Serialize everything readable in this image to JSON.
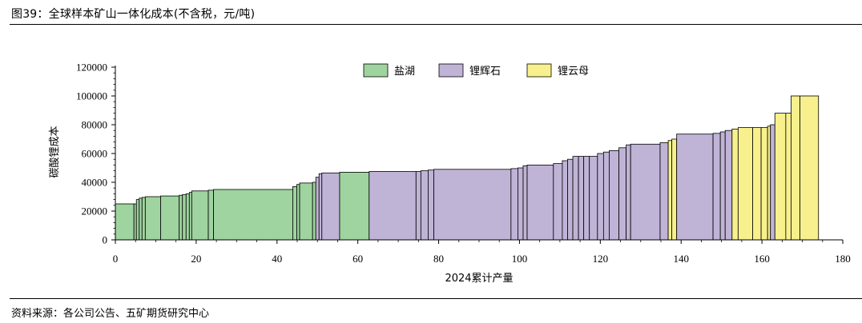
{
  "figure": {
    "title": "图39：全球样本矿山一体化成本(不含税，元/吨)",
    "source": "资料来源：各公司公告、五矿期货研究中心"
  },
  "chart_data": {
    "type": "bar",
    "subtype": "cost-curve (variable-width bars)",
    "xlabel": "2024累计产量",
    "ylabel": "碳酸锂成本",
    "xlim": [
      0,
      180
    ],
    "ylim": [
      0,
      120000
    ],
    "x_ticks": [
      0,
      20,
      40,
      60,
      80,
      100,
      120,
      140,
      160,
      180
    ],
    "y_ticks": [
      0,
      20000,
      40000,
      60000,
      80000,
      100000,
      120000
    ],
    "legend_position": "top-center",
    "colors": {
      "盐湖": "#9fd39f",
      "锂辉石": "#bfb3d6",
      "锂云母": "#f7f08c"
    },
    "series": [
      {
        "name": "盐湖",
        "color": "#9fd39f"
      },
      {
        "name": "锂辉石",
        "color": "#bfb3d6"
      },
      {
        "name": "锂云母",
        "color": "#f7f08c"
      }
    ],
    "bars": [
      {
        "x0": 0.0,
        "x1": 4.6,
        "y": 25000,
        "series": "盐湖"
      },
      {
        "x0": 4.6,
        "x1": 5.2,
        "y": 25000,
        "series": "盐湖"
      },
      {
        "x0": 5.2,
        "x1": 5.9,
        "y": 28000,
        "series": "盐湖"
      },
      {
        "x0": 5.9,
        "x1": 6.6,
        "y": 29000,
        "series": "盐湖"
      },
      {
        "x0": 6.6,
        "x1": 7.4,
        "y": 29500,
        "series": "盐湖"
      },
      {
        "x0": 7.4,
        "x1": 11.2,
        "y": 30000,
        "series": "盐湖"
      },
      {
        "x0": 11.2,
        "x1": 15.8,
        "y": 30500,
        "series": "盐湖"
      },
      {
        "x0": 15.8,
        "x1": 16.6,
        "y": 31000,
        "series": "盐湖"
      },
      {
        "x0": 16.6,
        "x1": 17.5,
        "y": 31500,
        "series": "盐湖"
      },
      {
        "x0": 17.5,
        "x1": 18.3,
        "y": 32000,
        "series": "盐湖"
      },
      {
        "x0": 18.3,
        "x1": 18.9,
        "y": 33000,
        "series": "盐湖"
      },
      {
        "x0": 18.9,
        "x1": 23.0,
        "y": 34000,
        "series": "盐湖"
      },
      {
        "x0": 23.0,
        "x1": 24.3,
        "y": 34500,
        "series": "盐湖"
      },
      {
        "x0": 24.3,
        "x1": 43.9,
        "y": 35000,
        "series": "盐湖"
      },
      {
        "x0": 43.9,
        "x1": 44.9,
        "y": 37000,
        "series": "盐湖"
      },
      {
        "x0": 44.9,
        "x1": 45.6,
        "y": 38500,
        "series": "盐湖"
      },
      {
        "x0": 45.6,
        "x1": 48.8,
        "y": 39500,
        "series": "盐湖"
      },
      {
        "x0": 48.8,
        "x1": 49.6,
        "y": 40000,
        "series": "盐湖"
      },
      {
        "x0": 49.6,
        "x1": 50.4,
        "y": 43500,
        "series": "锂辉石"
      },
      {
        "x0": 50.4,
        "x1": 51.1,
        "y": 46000,
        "series": "锂辉石"
      },
      {
        "x0": 51.1,
        "x1": 55.5,
        "y": 46500,
        "series": "锂辉石"
      },
      {
        "x0": 55.5,
        "x1": 62.8,
        "y": 47000,
        "series": "盐湖"
      },
      {
        "x0": 62.8,
        "x1": 74.4,
        "y": 47500,
        "series": "锂辉石"
      },
      {
        "x0": 74.4,
        "x1": 75.6,
        "y": 47500,
        "series": "锂辉石"
      },
      {
        "x0": 75.6,
        "x1": 77.4,
        "y": 48000,
        "series": "锂辉石"
      },
      {
        "x0": 77.4,
        "x1": 78.8,
        "y": 48500,
        "series": "锂辉石"
      },
      {
        "x0": 78.8,
        "x1": 97.9,
        "y": 49000,
        "series": "锂辉石"
      },
      {
        "x0": 97.9,
        "x1": 99.6,
        "y": 49500,
        "series": "锂辉石"
      },
      {
        "x0": 99.6,
        "x1": 100.9,
        "y": 50000,
        "series": "锂辉石"
      },
      {
        "x0": 100.9,
        "x1": 101.9,
        "y": 51500,
        "series": "锂辉石"
      },
      {
        "x0": 101.9,
        "x1": 108.4,
        "y": 52000,
        "series": "锂辉石"
      },
      {
        "x0": 108.4,
        "x1": 110.6,
        "y": 53000,
        "series": "锂辉石"
      },
      {
        "x0": 110.6,
        "x1": 111.9,
        "y": 55000,
        "series": "锂辉石"
      },
      {
        "x0": 111.9,
        "x1": 113.2,
        "y": 56000,
        "series": "锂辉石"
      },
      {
        "x0": 113.2,
        "x1": 114.6,
        "y": 58000,
        "series": "锂辉石"
      },
      {
        "x0": 114.6,
        "x1": 115.9,
        "y": 58000,
        "series": "锂辉石"
      },
      {
        "x0": 115.9,
        "x1": 117.3,
        "y": 58000,
        "series": "锂辉石"
      },
      {
        "x0": 117.3,
        "x1": 119.3,
        "y": 58000,
        "series": "锂辉石"
      },
      {
        "x0": 119.3,
        "x1": 120.8,
        "y": 60000,
        "series": "锂辉石"
      },
      {
        "x0": 120.8,
        "x1": 122.2,
        "y": 61000,
        "series": "锂辉石"
      },
      {
        "x0": 122.2,
        "x1": 124.6,
        "y": 62000,
        "series": "锂辉石"
      },
      {
        "x0": 124.6,
        "x1": 126.4,
        "y": 64000,
        "series": "锂辉石"
      },
      {
        "x0": 126.4,
        "x1": 127.5,
        "y": 66000,
        "series": "锂辉石"
      },
      {
        "x0": 127.5,
        "x1": 134.8,
        "y": 66500,
        "series": "锂辉石"
      },
      {
        "x0": 134.8,
        "x1": 136.8,
        "y": 67500,
        "series": "锂辉石"
      },
      {
        "x0": 136.8,
        "x1": 137.7,
        "y": 69000,
        "series": "锂云母"
      },
      {
        "x0": 137.7,
        "x1": 138.9,
        "y": 70000,
        "series": "锂云母"
      },
      {
        "x0": 138.9,
        "x1": 147.9,
        "y": 73500,
        "series": "锂辉石"
      },
      {
        "x0": 147.9,
        "x1": 149.7,
        "y": 74000,
        "series": "锂辉石"
      },
      {
        "x0": 149.7,
        "x1": 150.9,
        "y": 75000,
        "series": "锂辉石"
      },
      {
        "x0": 150.9,
        "x1": 152.6,
        "y": 76000,
        "series": "锂辉石"
      },
      {
        "x0": 152.6,
        "x1": 154.1,
        "y": 77000,
        "series": "锂云母"
      },
      {
        "x0": 154.1,
        "x1": 157.7,
        "y": 78000,
        "series": "锂云母"
      },
      {
        "x0": 157.7,
        "x1": 159.8,
        "y": 78000,
        "series": "锂云母"
      },
      {
        "x0": 159.8,
        "x1": 161.4,
        "y": 78000,
        "series": "锂云母"
      },
      {
        "x0": 161.4,
        "x1": 162.1,
        "y": 79000,
        "series": "锂云母"
      },
      {
        "x0": 162.1,
        "x1": 163.2,
        "y": 80000,
        "series": "锂辉石"
      },
      {
        "x0": 163.2,
        "x1": 165.9,
        "y": 88000,
        "series": "锂云母"
      },
      {
        "x0": 165.9,
        "x1": 167.2,
        "y": 88000,
        "series": "锂云母"
      },
      {
        "x0": 167.2,
        "x1": 169.4,
        "y": 100000,
        "series": "锂云母"
      },
      {
        "x0": 169.4,
        "x1": 174.0,
        "y": 100000,
        "series": "锂云母"
      }
    ]
  }
}
